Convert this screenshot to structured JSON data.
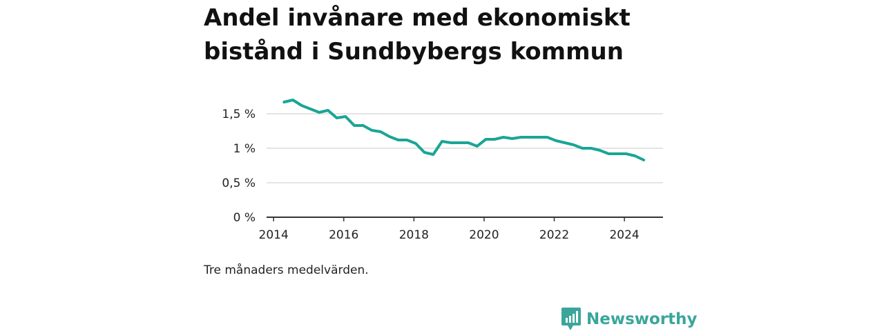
{
  "title_lines": [
    "Andel invånare med ekonomiskt",
    "bistånd i Sundbybergs kommun"
  ],
  "note": "Tre månaders medelvärden.",
  "brand": {
    "name": "Newsworthy",
    "icon": "newsworthy-logo-icon",
    "color": "#3aa69b"
  },
  "chart_data": {
    "type": "line",
    "title": "Andel invånare med ekonomiskt bistånd i Sundbybergs kommun",
    "xlabel": "",
    "ylabel": "",
    "xlim": [
      2013.8,
      2025.1
    ],
    "ylim": [
      0,
      1.75
    ],
    "x_ticks": [
      {
        "value": 2014,
        "label": "2014"
      },
      {
        "value": 2016,
        "label": "2016"
      },
      {
        "value": 2018,
        "label": "2018"
      },
      {
        "value": 2020,
        "label": "2020"
      },
      {
        "value": 2022,
        "label": "2022"
      },
      {
        "value": 2024,
        "label": "2024"
      }
    ],
    "y_ticks": [
      {
        "value": 0,
        "label": "0 %"
      },
      {
        "value": 0.5,
        "label": "0,5 %"
      },
      {
        "value": 1,
        "label": "1 %"
      },
      {
        "value": 1.5,
        "label": "1,5 %"
      }
    ],
    "grid": true,
    "series": [
      {
        "color": "#1aa595",
        "points": [
          [
            2014.3,
            1.67
          ],
          [
            2014.55,
            1.7
          ],
          [
            2014.8,
            1.62
          ],
          [
            2015.05,
            1.57
          ],
          [
            2015.3,
            1.52
          ],
          [
            2015.55,
            1.55
          ],
          [
            2015.8,
            1.44
          ],
          [
            2016.05,
            1.46
          ],
          [
            2016.3,
            1.33
          ],
          [
            2016.55,
            1.33
          ],
          [
            2016.8,
            1.26
          ],
          [
            2017.05,
            1.24
          ],
          [
            2017.3,
            1.17
          ],
          [
            2017.55,
            1.12
          ],
          [
            2017.8,
            1.12
          ],
          [
            2018.05,
            1.07
          ],
          [
            2018.3,
            0.94
          ],
          [
            2018.55,
            0.91
          ],
          [
            2018.8,
            1.1
          ],
          [
            2019.05,
            1.08
          ],
          [
            2019.3,
            1.08
          ],
          [
            2019.55,
            1.08
          ],
          [
            2019.8,
            1.03
          ],
          [
            2020.05,
            1.13
          ],
          [
            2020.3,
            1.13
          ],
          [
            2020.55,
            1.16
          ],
          [
            2020.8,
            1.14
          ],
          [
            2021.05,
            1.16
          ],
          [
            2021.3,
            1.16
          ],
          [
            2021.55,
            1.16
          ],
          [
            2021.8,
            1.16
          ],
          [
            2022.05,
            1.11
          ],
          [
            2022.3,
            1.08
          ],
          [
            2022.55,
            1.05
          ],
          [
            2022.8,
            1.0
          ],
          [
            2023.05,
            1.0
          ],
          [
            2023.3,
            0.97
          ],
          [
            2023.55,
            0.92
          ],
          [
            2023.8,
            0.92
          ],
          [
            2024.05,
            0.92
          ],
          [
            2024.3,
            0.89
          ],
          [
            2024.55,
            0.83
          ]
        ]
      }
    ]
  }
}
